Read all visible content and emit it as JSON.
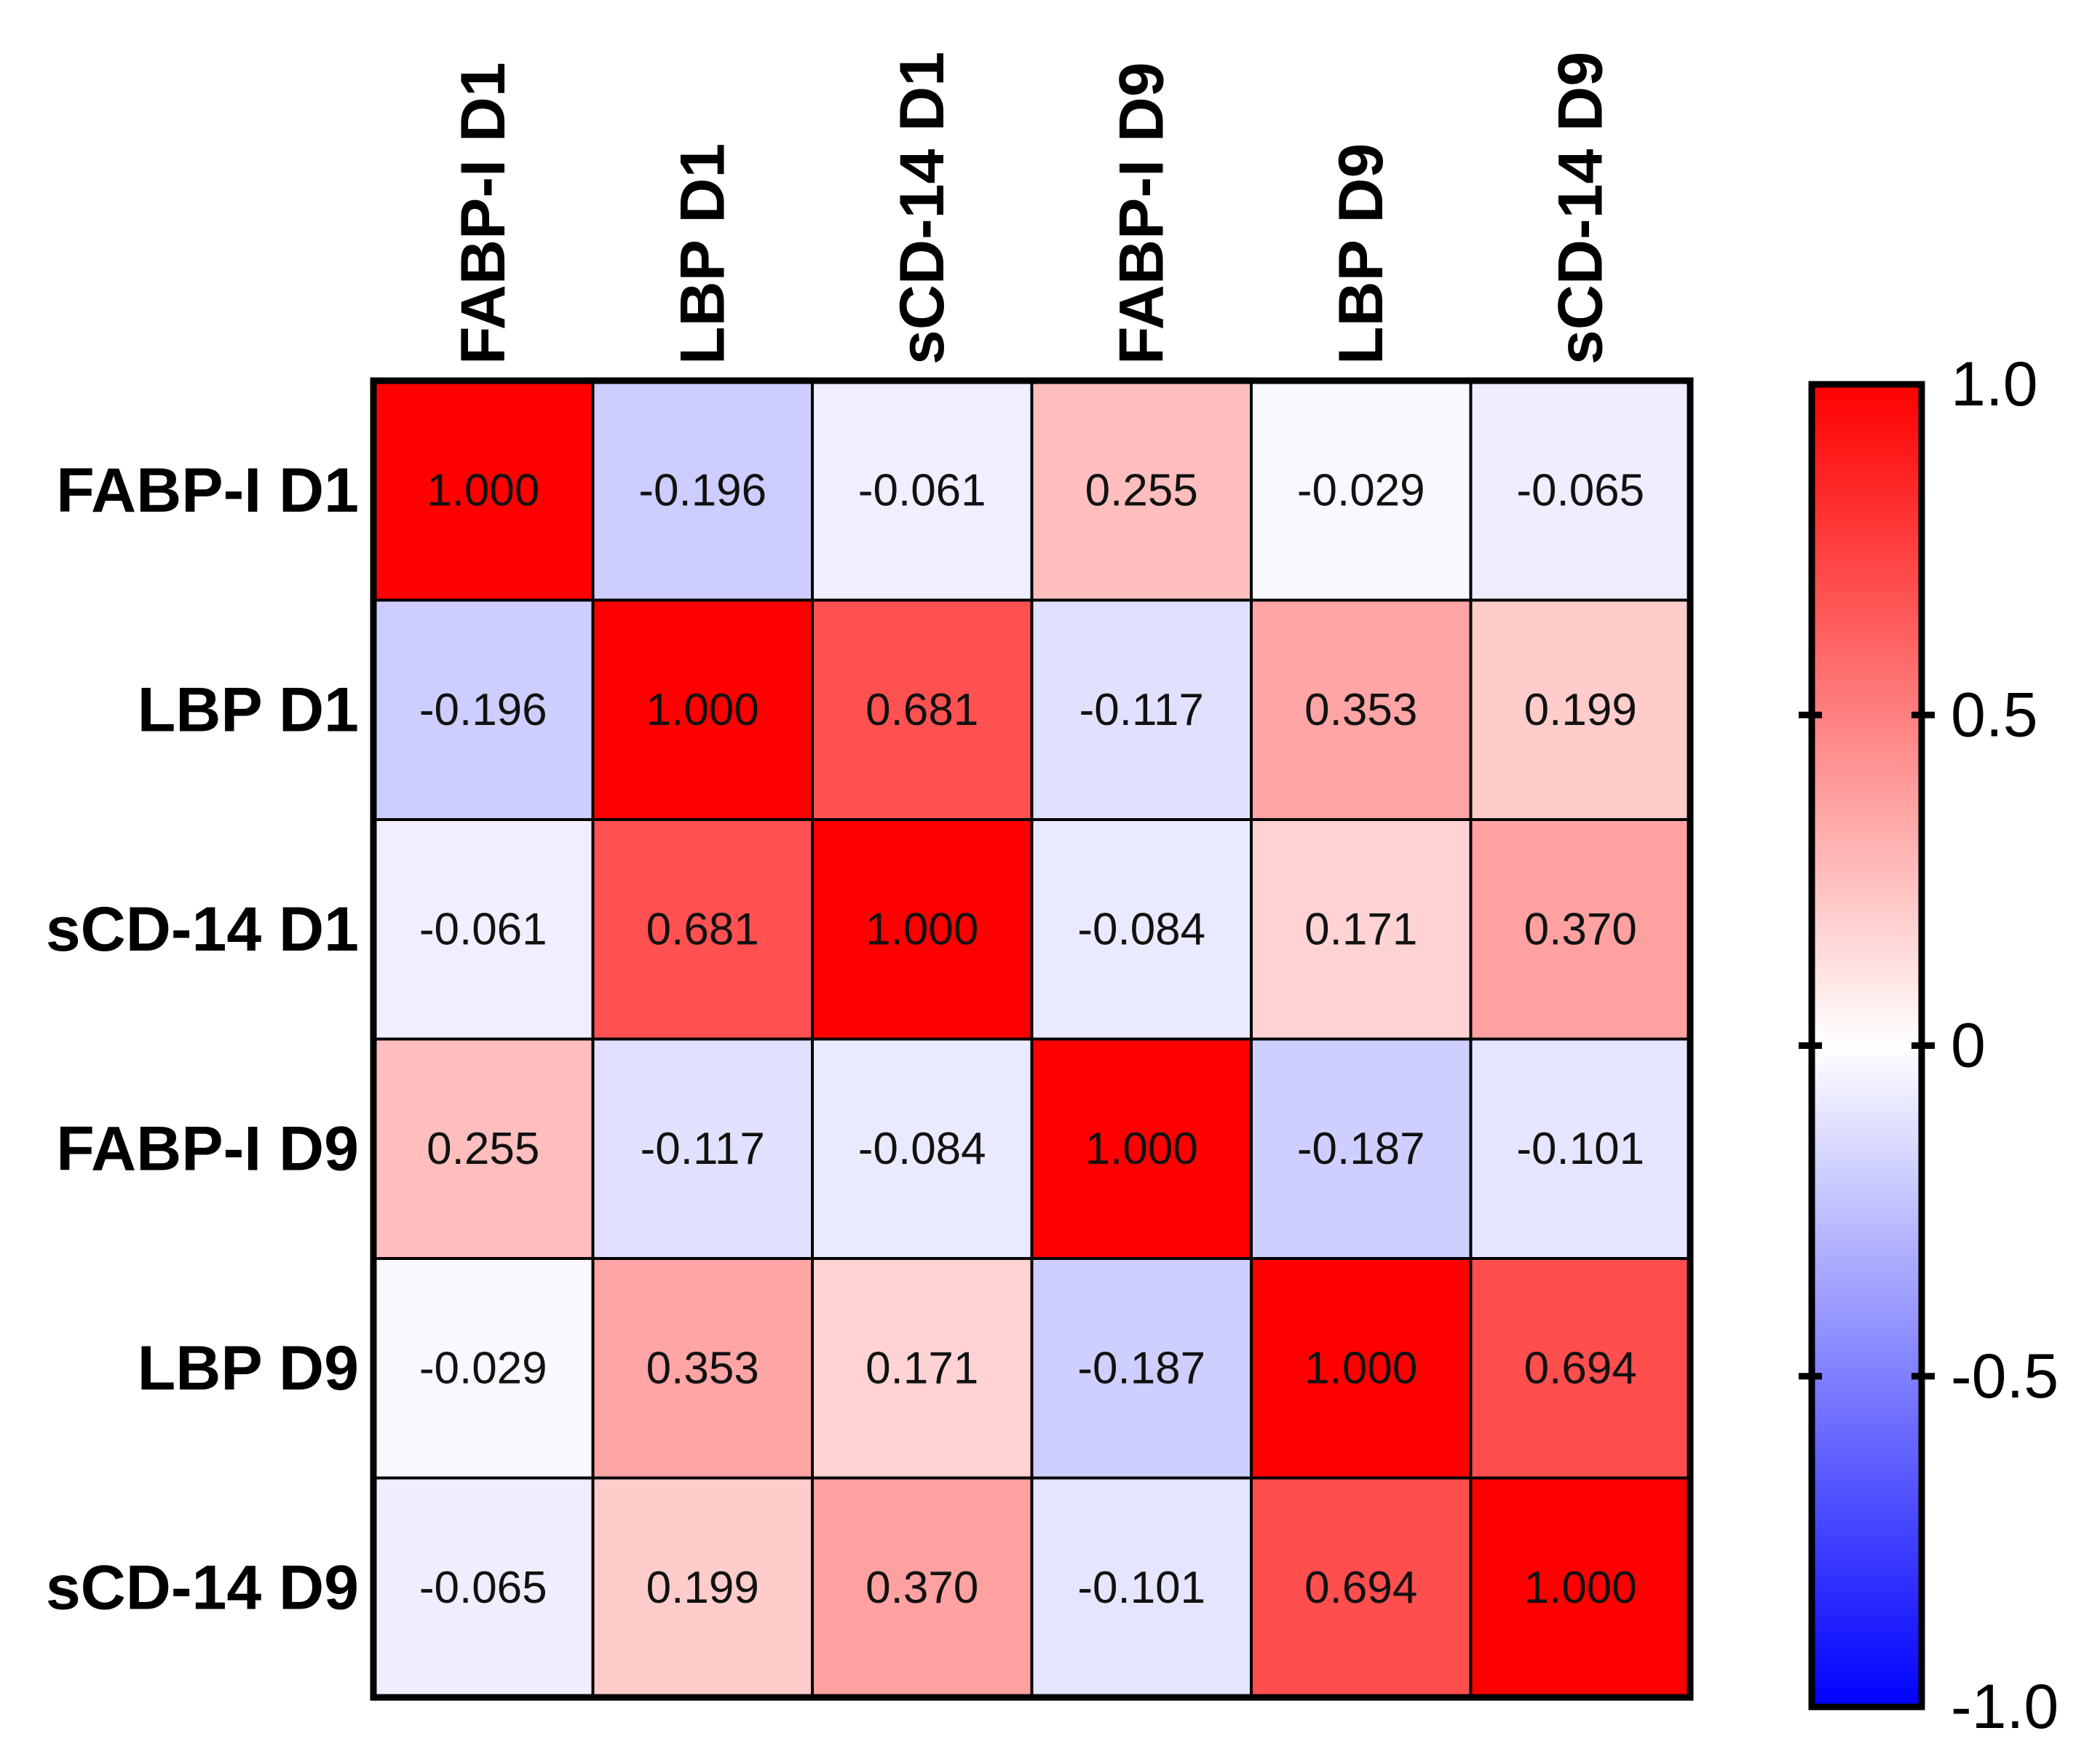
{
  "chart_data": {
    "type": "heatmap",
    "title": "",
    "x_labels": [
      "FABP-I D1",
      "LBP D1",
      "sCD-14 D1",
      "FABP-I D9",
      "LBP D9",
      "sCD-14 D9"
    ],
    "y_labels": [
      "FABP-I D1",
      "LBP D1",
      "sCD-14 D1",
      "FABP-I D9",
      "LBP D9",
      "sCD-14 D9"
    ],
    "values": [
      [
        1.0,
        -0.196,
        -0.061,
        0.255,
        -0.029,
        -0.065
      ],
      [
        -0.196,
        1.0,
        0.681,
        -0.117,
        0.353,
        0.199
      ],
      [
        -0.061,
        0.681,
        1.0,
        -0.084,
        0.171,
        0.37
      ],
      [
        0.255,
        -0.117,
        -0.084,
        1.0,
        -0.187,
        -0.101
      ],
      [
        -0.029,
        0.353,
        0.171,
        -0.187,
        1.0,
        0.694
      ],
      [
        -0.065,
        0.199,
        0.37,
        -0.101,
        0.694,
        1.0
      ]
    ],
    "value_format": "0.000",
    "colorbar": {
      "range": [
        -1.0,
        1.0
      ],
      "ticks": [
        1.0,
        0.5,
        0,
        -0.5,
        -1.0
      ],
      "tick_labels": [
        "1.0",
        "0.5",
        "0",
        "-0.5",
        "-1.0"
      ],
      "colors": {
        "min": "#0000ff",
        "mid": "#ffffff",
        "max": "#ff0000"
      }
    },
    "x_label_orientation": "vertical",
    "legend_position": "right"
  }
}
